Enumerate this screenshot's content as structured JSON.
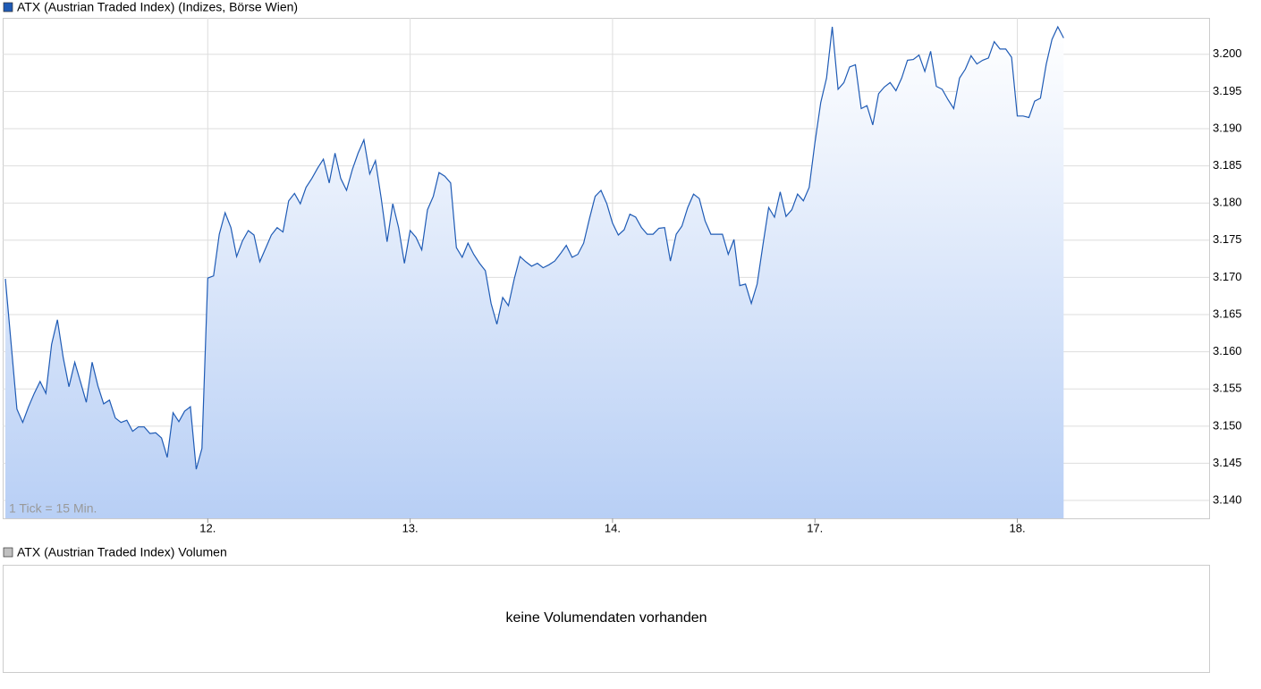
{
  "chart_data": [
    {
      "type": "line",
      "annotation": "1 Tick = 15 Min.",
      "categories": [
        null,
        null,
        null,
        null,
        null,
        null,
        null,
        null,
        null,
        null,
        null,
        null,
        null,
        null,
        null,
        null,
        null,
        null,
        null,
        null,
        null,
        null,
        null,
        null,
        null,
        null,
        null,
        null,
        null,
        null,
        null,
        null,
        null,
        null,
        null,
        "12.",
        null,
        null,
        null,
        null,
        null,
        null,
        null,
        null,
        null,
        null,
        null,
        null,
        null,
        null,
        null,
        null,
        null,
        null,
        null,
        null,
        null,
        null,
        null,
        null,
        null,
        null,
        null,
        null,
        null,
        null,
        null,
        null,
        null,
        null,
        "13.",
        null,
        null,
        null,
        null,
        null,
        null,
        null,
        null,
        null,
        null,
        null,
        null,
        null,
        null,
        null,
        null,
        null,
        null,
        null,
        null,
        null,
        null,
        null,
        null,
        null,
        null,
        null,
        null,
        null,
        null,
        null,
        null,
        null,
        null,
        "14.",
        null,
        null,
        null,
        null,
        null,
        null,
        null,
        null,
        null,
        null,
        null,
        null,
        null,
        null,
        null,
        null,
        null,
        null,
        null,
        null,
        null,
        null,
        null,
        null,
        null,
        null,
        null,
        null,
        null,
        null,
        null,
        null,
        null,
        null,
        "17.",
        null,
        null,
        null,
        null,
        null,
        null,
        null,
        null,
        null,
        null,
        null,
        null,
        null,
        null,
        null,
        null,
        null,
        null,
        null,
        null,
        null,
        null,
        null,
        null,
        null,
        null,
        null,
        null,
        null,
        null,
        null,
        null,
        null,
        null,
        "18.",
        null,
        null,
        null,
        null,
        null,
        null,
        null,
        null
      ],
      "series": [
        {
          "name": "ATX (Austrian Traded Index) (Indizes, Börse Wien)",
          "color": "#1f5bb5",
          "values": [
            3169.8,
            3161.0,
            3152.3,
            3150.5,
            3152.6,
            3154.4,
            3156.0,
            3154.4,
            3161.0,
            3164.3,
            3159.2,
            3155.3,
            3158.6,
            3155.9,
            3153.2,
            3158.6,
            3155.4,
            3153.0,
            3153.5,
            3151.1,
            3150.5,
            3150.8,
            3149.3,
            3149.9,
            3149.9,
            3149.0,
            3149.1,
            3148.4,
            3145.8,
            3151.8,
            3150.6,
            3152.0,
            3152.6,
            3144.2,
            3147.0,
            3169.9,
            3170.2,
            3175.8,
            3178.7,
            3176.7,
            3172.8,
            3174.9,
            3176.3,
            3175.7,
            3172.1,
            3173.9,
            3175.7,
            3176.7,
            3176.1,
            3180.3,
            3181.3,
            3179.9,
            3182.1,
            3183.3,
            3184.7,
            3185.9,
            3182.7,
            3186.7,
            3183.3,
            3181.7,
            3184.5,
            3186.7,
            3188.5,
            3183.9,
            3185.7,
            3180.6,
            3174.8,
            3179.9,
            3176.7,
            3171.9,
            3176.3,
            3175.4,
            3173.7,
            3179.1,
            3180.9,
            3184.1,
            3183.6,
            3182.7,
            3174.0,
            3172.7,
            3174.6,
            3173.1,
            3171.9,
            3170.9,
            3166.5,
            3163.7,
            3167.3,
            3166.2,
            3169.8,
            3172.8,
            3172.1,
            3171.5,
            3171.9,
            3171.3,
            3171.7,
            3172.2,
            3173.2,
            3174.3,
            3172.7,
            3173.1,
            3174.6,
            3177.9,
            3180.9,
            3181.7,
            3179.9,
            3177.3,
            3175.7,
            3176.4,
            3178.5,
            3178.1,
            3176.7,
            3175.8,
            3175.8,
            3176.6,
            3176.7,
            3172.2,
            3175.8,
            3176.9,
            3179.4,
            3181.2,
            3180.6,
            3177.6,
            3175.8,
            3175.8,
            3175.8,
            3173.1,
            3175.1,
            3168.9,
            3169.1,
            3166.5,
            3169.1,
            3174.3,
            3179.4,
            3178.1,
            3181.5,
            3178.2,
            3179.1,
            3181.2,
            3180.3,
            3182.1,
            3188.1,
            3193.5,
            3196.8,
            3203.7,
            3195.3,
            3196.2,
            3198.3,
            3198.6,
            3192.7,
            3193.1,
            3190.5,
            3194.7,
            3195.6,
            3196.2,
            3195.1,
            3196.8,
            3199.2,
            3199.3,
            3199.9,
            3197.7,
            3200.4,
            3195.7,
            3195.3,
            3193.9,
            3192.7,
            3196.8,
            3198.0,
            3199.8,
            3198.7,
            3199.2,
            3199.5,
            3201.7,
            3200.7,
            3200.7,
            3199.6,
            3191.7,
            3191.7,
            3191.5,
            3193.7,
            3194.1,
            3198.7,
            3202.0,
            3203.7,
            3202.2
          ]
        }
      ],
      "ylim": [
        3137.6,
        3204.9
      ],
      "yticks": [
        {
          "value": 3140,
          "label": "3.140"
        },
        {
          "value": 3145,
          "label": "3.145"
        },
        {
          "value": 3150,
          "label": "3.150"
        },
        {
          "value": 3155,
          "label": "3.155"
        },
        {
          "value": 3160,
          "label": "3.160"
        },
        {
          "value": 3165,
          "label": "3.165"
        },
        {
          "value": 3170,
          "label": "3.170"
        },
        {
          "value": 3175,
          "label": "3.175"
        },
        {
          "value": 3180,
          "label": "3.180"
        },
        {
          "value": 3185,
          "label": "3.185"
        },
        {
          "value": 3190,
          "label": "3.190"
        },
        {
          "value": 3195,
          "label": "3.195"
        },
        {
          "value": 3200,
          "label": "3.200"
        }
      ],
      "grid": true,
      "fill_color": "#b8cff5"
    },
    {
      "type": "empty",
      "legend": "ATX (Austrian Traded Index) Volumen",
      "legend_color": "#c0c0c0",
      "message": "keine Volumendaten vorhanden"
    }
  ]
}
